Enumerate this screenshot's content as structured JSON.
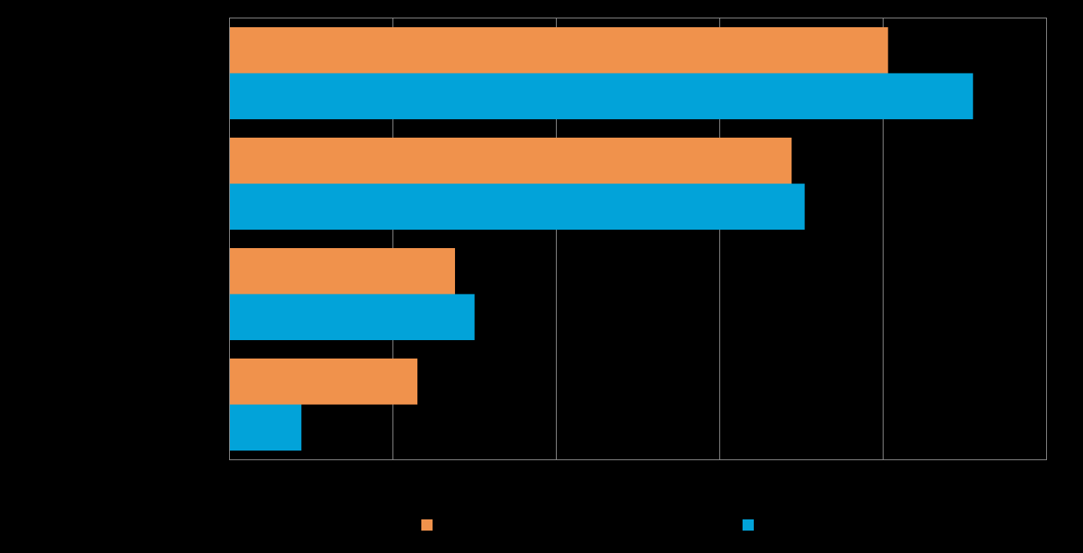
{
  "chart_data": {
    "type": "bar",
    "orientation": "horizontal",
    "categories": [
      "",
      "",
      "",
      ""
    ],
    "series": [
      {
        "values": [
          4.03,
          3.44,
          1.38,
          1.15
        ],
        "color": "#F0924C"
      },
      {
        "values": [
          4.55,
          3.52,
          1.5,
          0.44
        ],
        "color": "#02A3D9"
      }
    ],
    "xlim": [
      0,
      5
    ],
    "grid": true,
    "legend_position": "bottom"
  },
  "colors": {
    "background": "#000000",
    "grid": "#8c8c8c",
    "series_1": "#F0924C",
    "series_2": "#02A3D9"
  }
}
